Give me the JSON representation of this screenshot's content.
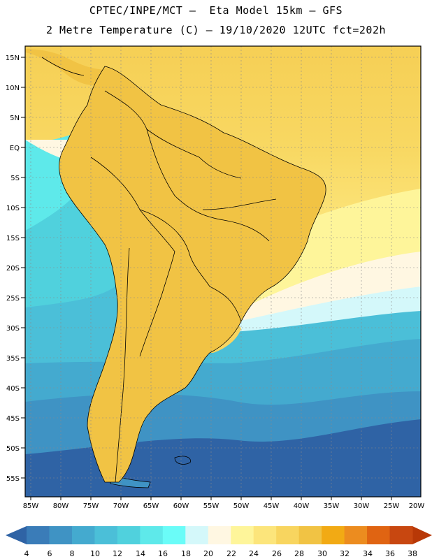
{
  "title": {
    "line1": "CPTEC/INPE/MCT –  Eta Model 15km – GFS",
    "line2": "2 Metre Temperature (C) – 19/10/2020 12UTC fct=202h"
  },
  "lat_labels": [
    "15N",
    "10N",
    "5N",
    "EQ",
    "5S",
    "10S",
    "15S",
    "20S",
    "25S",
    "30S",
    "35S",
    "40S",
    "45S",
    "50S",
    "55S"
  ],
  "lon_labels": [
    "85W",
    "80W",
    "75W",
    "70W",
    "65W",
    "60W",
    "55W",
    "50W",
    "45W",
    "40W",
    "35W",
    "30W",
    "25W",
    "20W"
  ],
  "colorbar": {
    "labels": [
      "4",
      "6",
      "8",
      "10",
      "12",
      "14",
      "16",
      "18",
      "20",
      "22",
      "24",
      "26",
      "28",
      "30",
      "32",
      "34",
      "36",
      "38"
    ],
    "colors": [
      "#2f63a5",
      "#3a7cb8",
      "#3f93c4",
      "#44aacf",
      "#4bbfd8",
      "#50d1dd",
      "#5ee9ea",
      "#6afcf8",
      "#d4f8fa",
      "#fff7e2",
      "#fef59a",
      "#fce57b",
      "#f8d55f",
      "#f1c344",
      "#f2aa14",
      "#ec8c1f",
      "#e06412",
      "#c84710",
      "#b83807"
    ],
    "low_arrow_color": "#2f63a5",
    "high_arrow_color": "#b83807"
  }
}
